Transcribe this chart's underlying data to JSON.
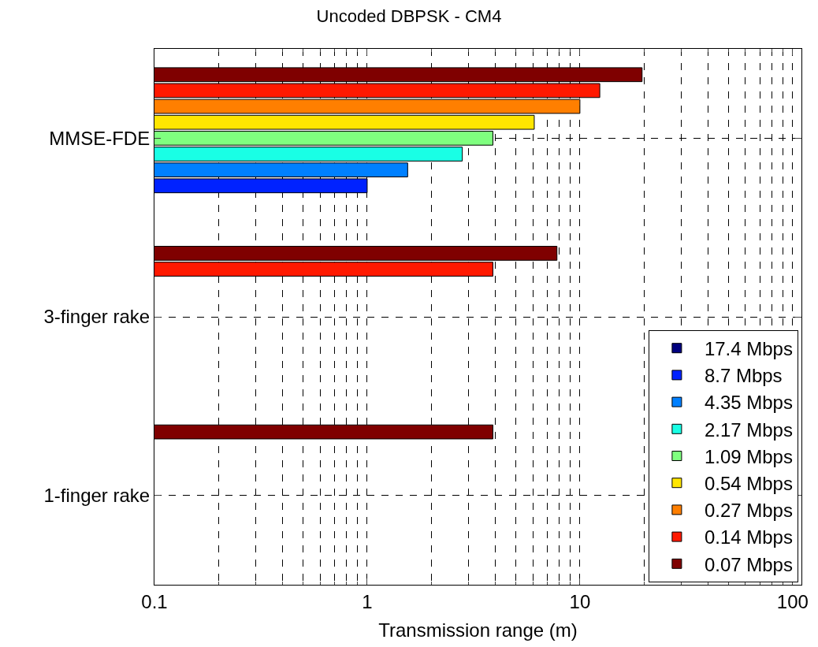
{
  "chart_data": {
    "type": "bar",
    "orientation": "horizontal",
    "title": "Uncoded DBPSK - CM4",
    "xlabel": "Transmission range (m)",
    "categories": [
      "MMSE-FDE",
      "3-finger rake",
      "1-finger rake"
    ],
    "series": [
      {
        "name": "17.4 Mbps",
        "color": "#00007f",
        "values": [
          null,
          null,
          null
        ]
      },
      {
        "name": "8.7 Mbps",
        "color": "#0022ff",
        "values": [
          1.0,
          null,
          null
        ]
      },
      {
        "name": "4.35 Mbps",
        "color": "#0080ff",
        "values": [
          1.55,
          null,
          null
        ]
      },
      {
        "name": "2.17 Mbps",
        "color": "#19ffe5",
        "values": [
          2.8,
          null,
          null
        ]
      },
      {
        "name": "1.09 Mbps",
        "color": "#7fff7f",
        "values": [
          3.9,
          null,
          null
        ]
      },
      {
        "name": "0.54 Mbps",
        "color": "#ffe600",
        "values": [
          6.1,
          null,
          null
        ]
      },
      {
        "name": "0.27 Mbps",
        "color": "#ff7f00",
        "values": [
          10,
          null,
          null
        ]
      },
      {
        "name": "0.14 Mbps",
        "color": "#ff1900",
        "values": [
          12.4,
          3.9,
          null
        ]
      },
      {
        "name": "0.07 Mbps",
        "color": "#7f0000",
        "values": [
          19.6,
          7.8,
          3.9
        ]
      }
    ],
    "log": "x",
    "xlim": [
      0.1,
      110
    ],
    "xticks": [
      0.1,
      1,
      10,
      100
    ],
    "grid": true,
    "legend": "bottom right"
  }
}
